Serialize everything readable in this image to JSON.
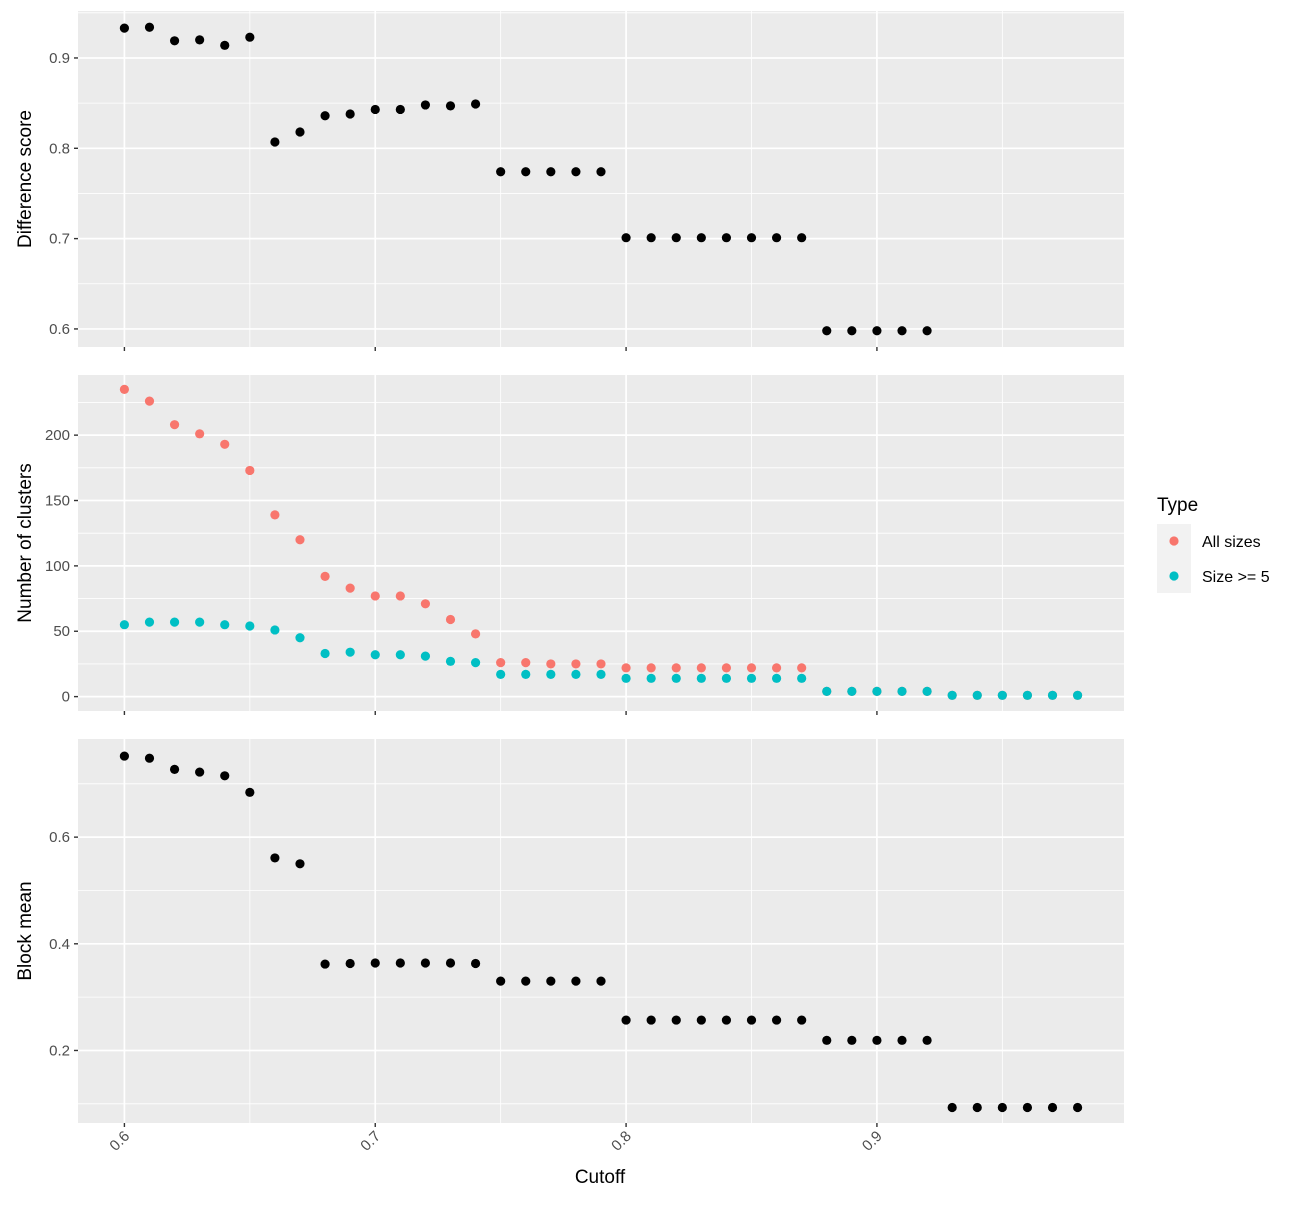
{
  "chart_data": {
    "type": "scatter",
    "xlabel": "Cutoff",
    "x_ticks": [
      "0.6",
      "0.7",
      "0.8",
      "0.9"
    ],
    "xlim": [
      0.5815,
      0.9985
    ],
    "legend": {
      "title": "Type",
      "placement": "right",
      "entries": [
        {
          "label": "All sizes",
          "color": "#F8766D"
        },
        {
          "label": "Size >= 5",
          "color": "#00BFC4"
        }
      ]
    },
    "colors": {
      "panel_bg": "#EBEBEB",
      "grid": "#FFFFFF",
      "point_default": "#000000"
    },
    "panels": [
      {
        "ylabel": "Difference score",
        "ylim": [
          0.58,
          0.952
        ],
        "y_ticks": [
          0.6,
          0.7,
          0.8,
          0.9
        ],
        "y_tick_labels": [
          "0.6",
          "0.7",
          "0.8",
          "0.9"
        ],
        "series": [
          {
            "color": "#000000",
            "points": [
              [
                0.6,
                0.933
              ],
              [
                0.61,
                0.934
              ],
              [
                0.62,
                0.919
              ],
              [
                0.63,
                0.92
              ],
              [
                0.64,
                0.914
              ],
              [
                0.65,
                0.923
              ],
              [
                0.66,
                0.807
              ],
              [
                0.67,
                0.818
              ],
              [
                0.68,
                0.836
              ],
              [
                0.69,
                0.838
              ],
              [
                0.7,
                0.843
              ],
              [
                0.71,
                0.843
              ],
              [
                0.72,
                0.848
              ],
              [
                0.73,
                0.847
              ],
              [
                0.74,
                0.849
              ],
              [
                0.75,
                0.774
              ],
              [
                0.76,
                0.774
              ],
              [
                0.77,
                0.774
              ],
              [
                0.78,
                0.774
              ],
              [
                0.79,
                0.774
              ],
              [
                0.8,
                0.701
              ],
              [
                0.81,
                0.701
              ],
              [
                0.82,
                0.701
              ],
              [
                0.83,
                0.701
              ],
              [
                0.84,
                0.701
              ],
              [
                0.85,
                0.701
              ],
              [
                0.86,
                0.701
              ],
              [
                0.87,
                0.701
              ],
              [
                0.88,
                0.598
              ],
              [
                0.89,
                0.598
              ],
              [
                0.9,
                0.598
              ],
              [
                0.91,
                0.598
              ],
              [
                0.92,
                0.598
              ]
            ]
          }
        ]
      },
      {
        "ylabel": "Number of clusters",
        "ylim": [
          -11,
          246
        ],
        "y_ticks": [
          0,
          50,
          100,
          150,
          200
        ],
        "y_tick_labels": [
          "0",
          "50",
          "100",
          "150",
          "200"
        ],
        "series": [
          {
            "name": "All sizes",
            "color": "#F8766D",
            "points": [
              [
                0.6,
                235
              ],
              [
                0.61,
                226
              ],
              [
                0.62,
                208
              ],
              [
                0.63,
                201
              ],
              [
                0.64,
                193
              ],
              [
                0.65,
                173
              ],
              [
                0.66,
                139
              ],
              [
                0.67,
                120
              ],
              [
                0.68,
                92
              ],
              [
                0.69,
                83
              ],
              [
                0.7,
                77
              ],
              [
                0.71,
                77
              ],
              [
                0.72,
                71
              ],
              [
                0.73,
                59
              ],
              [
                0.74,
                48
              ],
              [
                0.75,
                26
              ],
              [
                0.76,
                26
              ],
              [
                0.77,
                25
              ],
              [
                0.78,
                25
              ],
              [
                0.79,
                25
              ],
              [
                0.8,
                22
              ],
              [
                0.81,
                22
              ],
              [
                0.82,
                22
              ],
              [
                0.83,
                22
              ],
              [
                0.84,
                22
              ],
              [
                0.85,
                22
              ],
              [
                0.86,
                22
              ],
              [
                0.87,
                22
              ],
              [
                0.88,
                4
              ],
              [
                0.89,
                4
              ],
              [
                0.9,
                4
              ],
              [
                0.91,
                4
              ],
              [
                0.92,
                4
              ],
              [
                0.93,
                1
              ],
              [
                0.94,
                1
              ],
              [
                0.95,
                1
              ],
              [
                0.96,
                1
              ],
              [
                0.97,
                1
              ],
              [
                0.98,
                1
              ]
            ]
          },
          {
            "name": "Size >= 5",
            "color": "#00BFC4",
            "points": [
              [
                0.6,
                55
              ],
              [
                0.61,
                57
              ],
              [
                0.62,
                57
              ],
              [
                0.63,
                57
              ],
              [
                0.64,
                55
              ],
              [
                0.65,
                54
              ],
              [
                0.66,
                51
              ],
              [
                0.67,
                45
              ],
              [
                0.68,
                33
              ],
              [
                0.69,
                34
              ],
              [
                0.7,
                32
              ],
              [
                0.71,
                32
              ],
              [
                0.72,
                31
              ],
              [
                0.73,
                27
              ],
              [
                0.74,
                26
              ],
              [
                0.75,
                17
              ],
              [
                0.76,
                17
              ],
              [
                0.77,
                17
              ],
              [
                0.78,
                17
              ],
              [
                0.79,
                17
              ],
              [
                0.8,
                14
              ],
              [
                0.81,
                14
              ],
              [
                0.82,
                14
              ],
              [
                0.83,
                14
              ],
              [
                0.84,
                14
              ],
              [
                0.85,
                14
              ],
              [
                0.86,
                14
              ],
              [
                0.87,
                14
              ],
              [
                0.88,
                4
              ],
              [
                0.89,
                4
              ],
              [
                0.9,
                4
              ],
              [
                0.91,
                4
              ],
              [
                0.92,
                4
              ],
              [
                0.93,
                1
              ],
              [
                0.94,
                1
              ],
              [
                0.95,
                1
              ],
              [
                0.96,
                1
              ],
              [
                0.97,
                1
              ],
              [
                0.98,
                1
              ]
            ]
          }
        ]
      },
      {
        "ylabel": "Block mean",
        "ylim": [
          0.064,
          0.784
        ],
        "y_ticks": [
          0.2,
          0.4,
          0.6
        ],
        "y_tick_labels": [
          "0.2",
          "0.4",
          "0.6"
        ],
        "series": [
          {
            "color": "#000000",
            "points": [
              [
                0.6,
                0.752
              ],
              [
                0.61,
                0.748
              ],
              [
                0.62,
                0.727
              ],
              [
                0.63,
                0.722
              ],
              [
                0.64,
                0.715
              ],
              [
                0.65,
                0.684
              ],
              [
                0.66,
                0.561
              ],
              [
                0.67,
                0.55
              ],
              [
                0.68,
                0.362
              ],
              [
                0.69,
                0.363
              ],
              [
                0.7,
                0.364
              ],
              [
                0.71,
                0.364
              ],
              [
                0.72,
                0.364
              ],
              [
                0.73,
                0.364
              ],
              [
                0.74,
                0.363
              ],
              [
                0.75,
                0.33
              ],
              [
                0.76,
                0.33
              ],
              [
                0.77,
                0.33
              ],
              [
                0.78,
                0.33
              ],
              [
                0.79,
                0.33
              ],
              [
                0.8,
                0.257
              ],
              [
                0.81,
                0.257
              ],
              [
                0.82,
                0.257
              ],
              [
                0.83,
                0.257
              ],
              [
                0.84,
                0.257
              ],
              [
                0.85,
                0.257
              ],
              [
                0.86,
                0.257
              ],
              [
                0.87,
                0.257
              ],
              [
                0.88,
                0.219
              ],
              [
                0.89,
                0.219
              ],
              [
                0.9,
                0.219
              ],
              [
                0.91,
                0.219
              ],
              [
                0.92,
                0.219
              ],
              [
                0.93,
                0.093
              ],
              [
                0.94,
                0.093
              ],
              [
                0.95,
                0.093
              ],
              [
                0.96,
                0.093
              ],
              [
                0.97,
                0.093
              ],
              [
                0.98,
                0.093
              ]
            ]
          }
        ]
      }
    ]
  }
}
